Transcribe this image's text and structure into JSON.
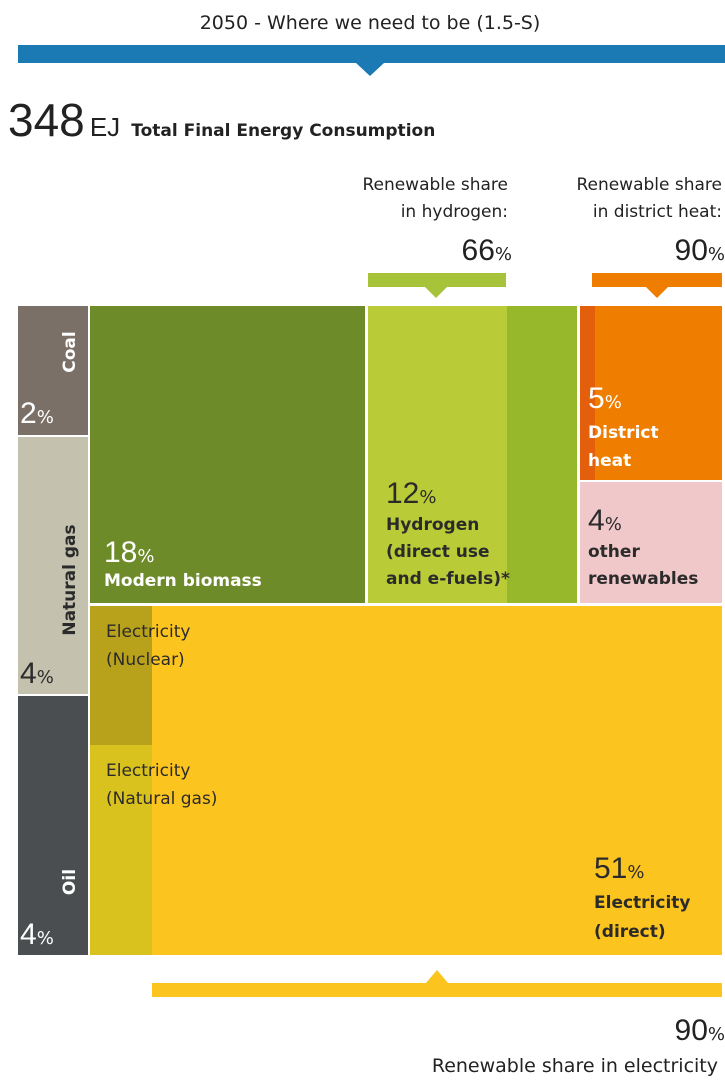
{
  "header": {
    "title": "2050  -  Where we need to be (1.5-S)"
  },
  "total": {
    "value": 348,
    "unit": "EJ",
    "label": "Total Final Energy Consumption"
  },
  "renewable_shares": [
    {
      "label_lines": [
        "Renewable share",
        "in hydrogen:"
      ],
      "value": 66,
      "unit": "%"
    },
    {
      "label_lines": [
        "Renewable share",
        "in district heat:"
      ],
      "value": 90,
      "unit": "%"
    },
    {
      "label_lines": [
        "Renewable share in electricity"
      ],
      "value": 90,
      "unit": "%"
    }
  ],
  "blocks": [
    {
      "name": "Coal",
      "value": 2,
      "unit": "%"
    },
    {
      "name": "Natural gas",
      "value": 4,
      "unit": "%"
    },
    {
      "name": "Oil",
      "value": 4,
      "unit": "%"
    },
    {
      "label_lines": [
        "Modern biomass"
      ],
      "value": 18,
      "unit": "%"
    },
    {
      "label_lines": [
        "Hydrogen",
        "(direct use",
        "and e-fuels)*"
      ],
      "value": 12,
      "unit": "%"
    },
    {
      "label_lines": [
        "District",
        "heat"
      ],
      "value": 5,
      "unit": "%"
    },
    {
      "label_lines": [
        "other",
        "renewables"
      ],
      "value": 4,
      "unit": "%"
    },
    {
      "label_lines": [
        "Electricity",
        "(Nuclear)"
      ]
    },
    {
      "label_lines": [
        "Electricity",
        "(Natural gas)"
      ]
    },
    {
      "label_lines": [
        "Electricity",
        "(direct)"
      ],
      "value": 51,
      "unit": "%"
    }
  ]
}
